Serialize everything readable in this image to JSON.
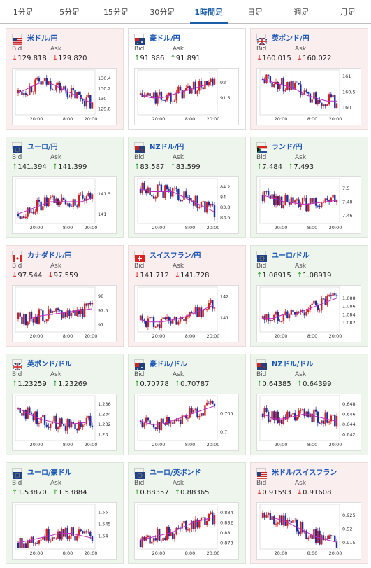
{
  "tabs": [
    "1分足",
    "5分足",
    "15分足",
    "30分足",
    "1時間足",
    "日足",
    "週足",
    "月足"
  ],
  "active_tab": 4,
  "bid_label": "Bid",
  "ask_label": "Ask",
  "cards": [
    {
      "name": "米ドル/円",
      "dir": "down",
      "bid": "129.818",
      "ask": "129.820",
      "flag": "us",
      "ticks": [
        "130.4",
        "130.2",
        "130",
        "129.8"
      ],
      "lim": [
        129.7,
        130.5
      ],
      "ma": [
        130.1,
        130.2,
        130.3,
        130.3,
        130.2,
        130.1,
        130.0,
        129.9
      ],
      "xlabels": [
        "20:00",
        "8:00",
        "20:00"
      ]
    },
    {
      "name": "豪ドル/円",
      "dir": "neutral",
      "bid": "91.886",
      "ask": "91.891",
      "flag": "au",
      "ticks": [
        "92",
        "91.5"
      ],
      "lim": [
        91.0,
        92.3
      ],
      "ma": [
        91.6,
        91.5,
        91.5,
        91.6,
        91.7,
        91.8,
        91.9,
        91.9
      ],
      "xlabels": [
        "20:00",
        "8:00",
        "20:00"
      ]
    },
    {
      "name": "英ポンド/円",
      "dir": "down",
      "bid": "160.015",
      "ask": "160.022",
      "flag": "gb",
      "ticks": [
        "161",
        "160.5",
        "160"
      ],
      "lim": [
        159.8,
        161.1
      ],
      "ma": [
        160.9,
        160.8,
        160.7,
        160.6,
        160.4,
        160.3,
        160.2,
        160.2
      ],
      "xlabels": [
        "20:00",
        "8:00",
        "20:00"
      ]
    },
    {
      "name": "ユーロ/円",
      "dir": "up",
      "bid": "141.394",
      "ask": "141.399",
      "flag": "eu",
      "ticks": [
        "141.5",
        "141"
      ],
      "lim": [
        140.8,
        141.8
      ],
      "ma": [
        141.0,
        141.1,
        141.2,
        141.3,
        141.3,
        141.3,
        141.3,
        141.4
      ],
      "xlabels": [
        "20:00",
        "8:00",
        "20:00"
      ]
    },
    {
      "name": "NZドル/円",
      "dir": "up",
      "bid": "83.587",
      "ask": "83.599",
      "flag": "nz",
      "ticks": [
        "84.2",
        "84",
        "83.8",
        "83.6"
      ],
      "lim": [
        83.5,
        84.3
      ],
      "ma": [
        84.15,
        84.1,
        84.1,
        84.1,
        84.0,
        83.9,
        83.8,
        83.7
      ],
      "xlabels": [
        "20:00",
        "8:00",
        "20:00"
      ]
    },
    {
      "name": "ランド/円",
      "dir": "up",
      "bid": "7.484",
      "ask": "7.493",
      "flag": "za",
      "ticks": [
        "7.5",
        "7.48",
        "7.46"
      ],
      "lim": [
        7.45,
        7.51
      ],
      "ma": [
        7.49,
        7.485,
        7.48,
        7.478,
        7.476,
        7.478,
        7.48,
        7.482
      ],
      "xlabels": [
        "20:00",
        "8:00",
        "20:00"
      ]
    },
    {
      "name": "カナダドル/円",
      "dir": "down",
      "bid": "97.544",
      "ask": "97.559",
      "flag": "ca",
      "ticks": [
        "98",
        "97.5",
        "97"
      ],
      "lim": [
        96.8,
        98.2
      ],
      "ma": [
        97.2,
        97.2,
        97.3,
        97.35,
        97.4,
        97.45,
        97.5,
        97.55
      ],
      "xlabels": [
        "20:00",
        "8:00",
        "20:00"
      ]
    },
    {
      "name": "スイスフラン/円",
      "dir": "down",
      "bid": "141.712",
      "ask": "141.728",
      "flag": "ch",
      "ticks": [
        "142",
        "141"
      ],
      "lim": [
        140.4,
        142.3
      ],
      "ma": [
        140.9,
        140.8,
        140.8,
        140.9,
        141.0,
        141.2,
        141.4,
        141.6
      ],
      "xlabels": [
        "20:00",
        "8:00",
        "20:00"
      ]
    },
    {
      "name": "ユーロ/ドル",
      "dir": "up",
      "bid": "1.08915",
      "ask": "1.08919",
      "flag": "eu",
      "ticks": [
        "1.088",
        "1.086",
        "1.084",
        "1.082"
      ],
      "lim": [
        1.08,
        1.09
      ],
      "ma": [
        1.083,
        1.083,
        1.084,
        1.084,
        1.085,
        1.086,
        1.087,
        1.088
      ],
      "xlabels": [
        "20:00",
        "8:00",
        "20:00"
      ]
    },
    {
      "name": "英ポンド/ドル",
      "dir": "up",
      "bid": "1.23259",
      "ask": "1.23269",
      "flag": "gb",
      "ticks": [
        "1.236",
        "1.234",
        "1.232",
        "1.23"
      ],
      "lim": [
        1.229,
        1.237
      ],
      "ma": [
        1.235,
        1.234,
        1.233,
        1.2325,
        1.232,
        1.232,
        1.2322,
        1.2325
      ],
      "xlabels": [
        "20:00",
        "8:00",
        "20:00"
      ]
    },
    {
      "name": "豪ドル/ドル",
      "dir": "up",
      "bid": "0.70778",
      "ask": "0.70787",
      "flag": "au",
      "ticks": [
        "0.705",
        "0.7"
      ],
      "lim": [
        0.698,
        0.709
      ],
      "ma": [
        0.703,
        0.702,
        0.702,
        0.703,
        0.704,
        0.705,
        0.706,
        0.707
      ],
      "xlabels": [
        "20:00",
        "8:00",
        "20:00"
      ]
    },
    {
      "name": "NZドル/ドル",
      "dir": "up",
      "bid": "0.64385",
      "ask": "0.64399",
      "flag": "nz",
      "ticks": [
        "0.648",
        "0.646",
        "0.644",
        "0.642"
      ],
      "lim": [
        0.641,
        0.649
      ],
      "ma": [
        0.646,
        0.645,
        0.645,
        0.6455,
        0.646,
        0.6455,
        0.645,
        0.6445
      ],
      "xlabels": [
        "20:00",
        "8:00",
        "20:00"
      ]
    },
    {
      "name": "ユーロ/豪ドル",
      "dir": "up",
      "bid": "1.53870",
      "ask": "1.53884",
      "flag": "eu",
      "ticks": [
        "1.55",
        "1.545",
        "1.54"
      ],
      "lim": [
        1.535,
        1.552
      ],
      "ma": [
        1.537,
        1.538,
        1.539,
        1.54,
        1.541,
        1.541,
        1.54,
        1.539
      ],
      "xlabels": [
        "20:00",
        "8:00",
        "20:00"
      ]
    },
    {
      "name": "ユーロ/英ポンド",
      "dir": "up",
      "bid": "0.88357",
      "ask": "0.88365",
      "flag": "eu",
      "ticks": [
        "0.884",
        "0.882",
        "0.88",
        "0.878"
      ],
      "lim": [
        0.877,
        0.885
      ],
      "ma": [
        0.8785,
        0.879,
        0.8795,
        0.88,
        0.881,
        0.882,
        0.8825,
        0.883
      ],
      "xlabels": [
        "20:00",
        "8:00",
        "20:00"
      ]
    },
    {
      "name": "米ドル/スイスフラン",
      "dir": "down",
      "bid": "0.91593",
      "ask": "0.91608",
      "flag": "us",
      "ticks": [
        "0.925",
        "0.92",
        "0.915"
      ],
      "lim": [
        0.913,
        0.928
      ],
      "ma": [
        0.924,
        0.924,
        0.923,
        0.921,
        0.919,
        0.917,
        0.916,
        0.915
      ],
      "xlabels": [
        "20:00",
        "8:00",
        "20:00"
      ]
    }
  ]
}
